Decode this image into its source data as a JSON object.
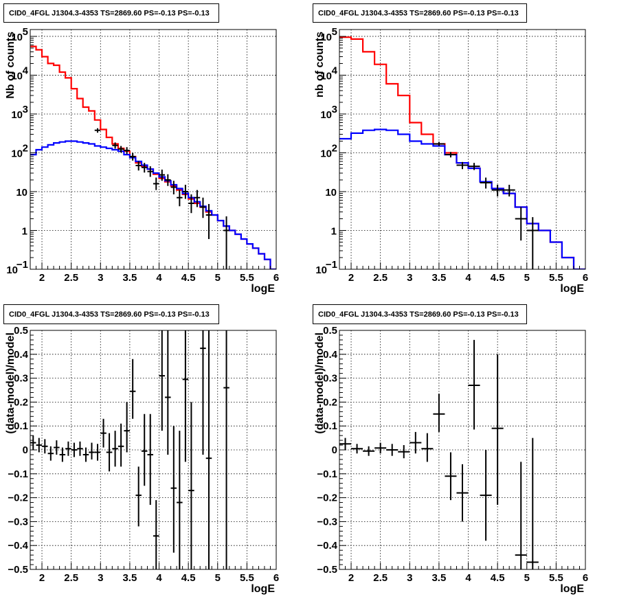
{
  "colors": {
    "data": "#000000",
    "total_model": "#ff0000",
    "source_model": "#0000ff",
    "grid": "#000000"
  },
  "chart_data": [
    {
      "type": "line",
      "title": "CID0_4FGL J1304.3-4353 TS=2869.60 PS=-0.13 PS=-0.13",
      "xlabel": "logE",
      "ylabel": "Nb of counts",
      "log_y": true,
      "xlim": [
        1.8,
        6.0
      ],
      "ylim": [
        0.1,
        150000
      ],
      "grid": true,
      "x_ticks": [
        "2",
        "2.5",
        "3",
        "3.5",
        "4",
        "4.5",
        "5",
        "5.5",
        "6"
      ],
      "y_ticks": [
        {
          "value": 0.1,
          "base": "10",
          "exp": "−1"
        },
        {
          "value": 1,
          "base": "1",
          "exp": ""
        },
        {
          "value": 10,
          "base": "10",
          "exp": ""
        },
        {
          "value": 100,
          "base": "10",
          "exp": "2"
        },
        {
          "value": 1000,
          "base": "10",
          "exp": "3"
        },
        {
          "value": 10000,
          "base": "10",
          "exp": "4"
        },
        {
          "value": 100000,
          "base": "10",
          "exp": "5"
        }
      ],
      "bin_edges": [
        1.8,
        1.9,
        2.0,
        2.1,
        2.2,
        2.3,
        2.4,
        2.5,
        2.6,
        2.7,
        2.8,
        2.9,
        3.0,
        3.1,
        3.2,
        3.3,
        3.4,
        3.5,
        3.6,
        3.7,
        3.8,
        3.9,
        4.0,
        4.1,
        4.2,
        4.3,
        4.4,
        4.5,
        4.6,
        4.7,
        4.8,
        4.9,
        5.0,
        5.1,
        5.2,
        5.3,
        5.4,
        5.5,
        5.6,
        5.7,
        5.8,
        5.9,
        6.0
      ],
      "series": [
        {
          "role": "total_model",
          "values": [
            55000,
            45000,
            30000,
            20000,
            18000,
            12000,
            8500,
            4500,
            2500,
            1500,
            1200,
            700,
            400,
            250,
            170,
            130,
            110,
            80,
            55,
            45,
            38,
            28,
            22,
            18,
            14,
            11,
            8.5,
            6.5,
            5,
            4,
            3,
            2.5,
            1.8,
            1.3,
            1,
            0.8,
            0.6,
            0.45,
            0.35,
            0.25,
            0.18,
            0.1
          ]
        },
        {
          "role": "source_model",
          "values": [
            90,
            120,
            140,
            160,
            180,
            190,
            200,
            200,
            190,
            180,
            170,
            150,
            140,
            130,
            120,
            110,
            90,
            75,
            60,
            48,
            38,
            30,
            24,
            19,
            15,
            12,
            9,
            7,
            5.5,
            4.2,
            3.2,
            2.5,
            1.8,
            1.3,
            1,
            0.8,
            0.6,
            0.45,
            0.35,
            0.25,
            0.18,
            0.1
          ]
        }
      ],
      "points": [
        {
          "x": 2.95,
          "y": 380,
          "dx": 0.05,
          "ylo": 330,
          "yhi": 430
        },
        {
          "x": 3.25,
          "y": 155,
          "dx": 0.05,
          "ylo": 128,
          "yhi": 185
        },
        {
          "x": 3.35,
          "y": 125,
          "dx": 0.05,
          "ylo": 102,
          "yhi": 150
        },
        {
          "x": 3.45,
          "y": 115,
          "dx": 0.05,
          "ylo": 93,
          "yhi": 140
        },
        {
          "x": 3.55,
          "y": 80,
          "dx": 0.05,
          "ylo": 63,
          "yhi": 100
        },
        {
          "x": 3.65,
          "y": 47,
          "dx": 0.05,
          "ylo": 35,
          "yhi": 61
        },
        {
          "x": 3.75,
          "y": 42,
          "dx": 0.05,
          "ylo": 31,
          "yhi": 55
        },
        {
          "x": 3.85,
          "y": 33,
          "dx": 0.05,
          "ylo": 24,
          "yhi": 45
        },
        {
          "x": 3.95,
          "y": 16,
          "dx": 0.05,
          "ylo": 11,
          "yhi": 23
        },
        {
          "x": 4.05,
          "y": 27,
          "dx": 0.05,
          "ylo": 19,
          "yhi": 37
        },
        {
          "x": 4.15,
          "y": 20,
          "dx": 0.05,
          "ylo": 14,
          "yhi": 28
        },
        {
          "x": 4.25,
          "y": 13,
          "dx": 0.05,
          "ylo": 8.5,
          "yhi": 19
        },
        {
          "x": 4.35,
          "y": 7,
          "dx": 0.05,
          "ylo": 4.2,
          "yhi": 11
        },
        {
          "x": 4.45,
          "y": 10,
          "dx": 0.05,
          "ylo": 6.5,
          "yhi": 15
        },
        {
          "x": 4.55,
          "y": 5,
          "dx": 0.05,
          "ylo": 2.8,
          "yhi": 8.5
        },
        {
          "x": 4.65,
          "y": 7,
          "dx": 0.05,
          "ylo": 4,
          "yhi": 11
        },
        {
          "x": 4.75,
          "y": 4,
          "dx": 0.05,
          "ylo": 2.1,
          "yhi": 7
        },
        {
          "x": 4.85,
          "y": 2.5,
          "dx": 0.05,
          "ylo": 0.6,
          "yhi": 4.8
        },
        {
          "x": 5.15,
          "y": 1,
          "dx": 0.05,
          "ylo": 0.1,
          "yhi": 2.3
        }
      ]
    },
    {
      "type": "line",
      "title": "CID0_4FGL J1304.3-4353 TS=2869.60 PS=-0.13 PS=-0.13",
      "xlabel": "logE",
      "ylabel": "nb of counts",
      "log_y": true,
      "xlim": [
        1.8,
        6.0
      ],
      "ylim": [
        0.1,
        150000
      ],
      "grid": true,
      "x_ticks": [
        "2",
        "2.5",
        "3",
        "3.5",
        "4",
        "4.5",
        "5",
        "5.5",
        "6"
      ],
      "y_ticks": [
        {
          "value": 0.1,
          "base": "10",
          "exp": "−1"
        },
        {
          "value": 1,
          "base": "1",
          "exp": ""
        },
        {
          "value": 10,
          "base": "10",
          "exp": ""
        },
        {
          "value": 100,
          "base": "10",
          "exp": "2"
        },
        {
          "value": 1000,
          "base": "10",
          "exp": "3"
        },
        {
          "value": 10000,
          "base": "10",
          "exp": "4"
        },
        {
          "value": 100000,
          "base": "10",
          "exp": "5"
        }
      ],
      "bin_edges": [
        1.8,
        2.0,
        2.2,
        2.4,
        2.6,
        2.8,
        3.0,
        3.2,
        3.4,
        3.6,
        3.8,
        4.0,
        4.2,
        4.4,
        4.6,
        4.8,
        5.0,
        5.2,
        5.4,
        5.6,
        5.8,
        6.0
      ],
      "series": [
        {
          "role": "total_model",
          "values": [
            95000,
            85000,
            40000,
            19000,
            6000,
            3000,
            600,
            300,
            170,
            100,
            55,
            40,
            18,
            12,
            9,
            4,
            1.5,
            1,
            0.5,
            0.2,
            0.1
          ]
        },
        {
          "role": "source_model",
          "values": [
            230,
            320,
            380,
            400,
            380,
            300,
            200,
            170,
            150,
            90,
            55,
            40,
            18,
            12,
            9,
            4,
            1.5,
            1,
            0.5,
            0.2,
            0.1
          ]
        }
      ],
      "points": [
        {
          "x": 3.5,
          "y": 170,
          "dx": 0.1,
          "ylo": 150,
          "yhi": 192
        },
        {
          "x": 3.7,
          "y": 90,
          "dx": 0.1,
          "ylo": 76,
          "yhi": 105
        },
        {
          "x": 3.9,
          "y": 48,
          "dx": 0.1,
          "ylo": 38,
          "yhi": 58
        },
        {
          "x": 4.1,
          "y": 45,
          "dx": 0.1,
          "ylo": 36,
          "yhi": 55
        },
        {
          "x": 4.3,
          "y": 17,
          "dx": 0.1,
          "ylo": 12,
          "yhi": 23
        },
        {
          "x": 4.5,
          "y": 11,
          "dx": 0.1,
          "ylo": 7.5,
          "yhi": 15
        },
        {
          "x": 4.7,
          "y": 11,
          "dx": 0.1,
          "ylo": 7.5,
          "yhi": 15
        },
        {
          "x": 4.9,
          "y": 2,
          "dx": 0.1,
          "ylo": 0.55,
          "yhi": 4
        },
        {
          "x": 5.1,
          "y": 1,
          "dx": 0.1,
          "ylo": 0.1,
          "yhi": 2.2
        }
      ]
    },
    {
      "type": "scatter",
      "title": "CID0_4FGL J1304.3-4353 TS=2869.60 PS=-0.13 PS=-0.13",
      "xlabel": "logE",
      "ylabel": "(data-model)/model",
      "log_y": false,
      "xlim": [
        1.8,
        6.0
      ],
      "ylim": [
        -0.5,
        0.5
      ],
      "grid": true,
      "x_ticks": [
        "2",
        "2.5",
        "3",
        "3.5",
        "4",
        "4.5",
        "5",
        "5.5",
        "6"
      ],
      "y_ticks": [
        "−0.5",
        "−0.4",
        "−0.3",
        "−0.2",
        "−0.1",
        "0",
        "0.1",
        "0.2",
        "0.3",
        "0.4",
        "0.5"
      ],
      "points": [
        {
          "x": 1.85,
          "y": 0.03,
          "dx": 0.05,
          "ylo": 0.0,
          "yhi": 0.06
        },
        {
          "x": 1.95,
          "y": 0.02,
          "dx": 0.05,
          "ylo": -0.01,
          "yhi": 0.05
        },
        {
          "x": 2.05,
          "y": 0.015,
          "dx": 0.05,
          "ylo": -0.015,
          "yhi": 0.045
        },
        {
          "x": 2.15,
          "y": -0.015,
          "dx": 0.05,
          "ylo": -0.045,
          "yhi": 0.015
        },
        {
          "x": 2.25,
          "y": 0.01,
          "dx": 0.05,
          "ylo": -0.02,
          "yhi": 0.04
        },
        {
          "x": 2.35,
          "y": -0.02,
          "dx": 0.05,
          "ylo": -0.05,
          "yhi": 0.01
        },
        {
          "x": 2.45,
          "y": 0.005,
          "dx": 0.05,
          "ylo": -0.025,
          "yhi": 0.035
        },
        {
          "x": 2.55,
          "y": 0.0,
          "dx": 0.05,
          "ylo": -0.03,
          "yhi": 0.03
        },
        {
          "x": 2.65,
          "y": 0.005,
          "dx": 0.05,
          "ylo": -0.025,
          "yhi": 0.035
        },
        {
          "x": 2.75,
          "y": -0.02,
          "dx": 0.05,
          "ylo": -0.05,
          "yhi": 0.01
        },
        {
          "x": 2.85,
          "y": -0.01,
          "dx": 0.05,
          "ylo": -0.04,
          "yhi": 0.03
        },
        {
          "x": 2.95,
          "y": -0.01,
          "dx": 0.05,
          "ylo": -0.045,
          "yhi": 0.025
        },
        {
          "x": 3.05,
          "y": 0.07,
          "dx": 0.05,
          "ylo": 0.01,
          "yhi": 0.13
        },
        {
          "x": 3.15,
          "y": -0.01,
          "dx": 0.05,
          "ylo": -0.09,
          "yhi": 0.07
        },
        {
          "x": 3.25,
          "y": 0.005,
          "dx": 0.05,
          "ylo": -0.07,
          "yhi": 0.08
        },
        {
          "x": 3.35,
          "y": 0.015,
          "dx": 0.05,
          "ylo": -0.07,
          "yhi": 0.11
        },
        {
          "x": 3.45,
          "y": 0.08,
          "dx": 0.05,
          "ylo": -0.01,
          "yhi": 0.2
        },
        {
          "x": 3.55,
          "y": 0.245,
          "dx": 0.05,
          "ylo": 0.13,
          "yhi": 0.38
        },
        {
          "x": 3.65,
          "y": -0.19,
          "dx": 0.05,
          "ylo": -0.32,
          "yhi": -0.07
        },
        {
          "x": 3.75,
          "y": -0.005,
          "dx": 0.05,
          "ylo": -0.15,
          "yhi": 0.15
        },
        {
          "x": 3.85,
          "y": -0.02,
          "dx": 0.05,
          "ylo": -0.23,
          "yhi": 0.15
        },
        {
          "x": 3.95,
          "y": -0.36,
          "dx": 0.05,
          "ylo": -0.5,
          "yhi": -0.21
        },
        {
          "x": 4.05,
          "y": 0.31,
          "dx": 0.05,
          "ylo": 0.08,
          "yhi": 0.5
        },
        {
          "x": 4.15,
          "y": 0.22,
          "dx": 0.05,
          "ylo": -0.02,
          "yhi": 0.5
        },
        {
          "x": 4.25,
          "y": -0.16,
          "dx": 0.05,
          "ylo": -0.43,
          "yhi": 0.1
        },
        {
          "x": 4.35,
          "y": -0.22,
          "dx": 0.05,
          "ylo": -0.5,
          "yhi": 0.08
        },
        {
          "x": 4.45,
          "y": 0.295,
          "dx": 0.05,
          "ylo": -0.05,
          "yhi": 0.5
        },
        {
          "x": 4.55,
          "y": -0.17,
          "dx": 0.05,
          "ylo": -0.5,
          "yhi": 0.2
        },
        {
          "x": 4.75,
          "y": 0.425,
          "dx": 0.05,
          "ylo": -0.02,
          "yhi": 0.5
        },
        {
          "x": 4.85,
          "y": -0.035,
          "dx": 0.05,
          "ylo": -0.5,
          "yhi": 0.5
        },
        {
          "x": 5.15,
          "y": 0.26,
          "dx": 0.05,
          "ylo": -0.5,
          "yhi": 0.5
        }
      ]
    },
    {
      "type": "scatter",
      "title": "CID0_4FGL J1304.3-4353 TS=2869.60 PS=-0.13 PS=-0.13",
      "xlabel": "logE",
      "ylabel": "(data-model)/model",
      "log_y": false,
      "xlim": [
        1.8,
        6.0
      ],
      "ylim": [
        -0.5,
        0.5
      ],
      "grid": true,
      "x_ticks": [
        "2",
        "2.5",
        "3",
        "3.5",
        "4",
        "4.5",
        "5",
        "5.5",
        "6"
      ],
      "y_ticks": [
        "−0.5",
        "−0.4",
        "−0.3",
        "−0.2",
        "−0.1",
        "0",
        "0.1",
        "0.2",
        "0.3",
        "0.4",
        "0.5"
      ],
      "points": [
        {
          "x": 1.9,
          "y": 0.025,
          "dx": 0.1,
          "ylo": 0.0,
          "yhi": 0.05
        },
        {
          "x": 2.1,
          "y": 0.005,
          "dx": 0.1,
          "ylo": -0.015,
          "yhi": 0.025
        },
        {
          "x": 2.3,
          "y": -0.005,
          "dx": 0.1,
          "ylo": -0.025,
          "yhi": 0.015
        },
        {
          "x": 2.5,
          "y": 0.008,
          "dx": 0.1,
          "ylo": -0.015,
          "yhi": 0.03
        },
        {
          "x": 2.7,
          "y": 0.0,
          "dx": 0.1,
          "ylo": -0.025,
          "yhi": 0.025
        },
        {
          "x": 2.9,
          "y": -0.008,
          "dx": 0.1,
          "ylo": -0.035,
          "yhi": 0.02
        },
        {
          "x": 3.1,
          "y": 0.03,
          "dx": 0.1,
          "ylo": -0.015,
          "yhi": 0.075
        },
        {
          "x": 3.3,
          "y": 0.005,
          "dx": 0.1,
          "ylo": -0.05,
          "yhi": 0.07
        },
        {
          "x": 3.5,
          "y": 0.15,
          "dx": 0.1,
          "ylo": 0.075,
          "yhi": 0.235
        },
        {
          "x": 3.7,
          "y": -0.11,
          "dx": 0.1,
          "ylo": -0.21,
          "yhi": -0.01
        },
        {
          "x": 3.9,
          "y": -0.18,
          "dx": 0.1,
          "ylo": -0.3,
          "yhi": -0.06
        },
        {
          "x": 4.1,
          "y": 0.27,
          "dx": 0.1,
          "ylo": 0.085,
          "yhi": 0.46
        },
        {
          "x": 4.3,
          "y": -0.19,
          "dx": 0.1,
          "ylo": -0.38,
          "yhi": 0.0
        },
        {
          "x": 4.5,
          "y": 0.09,
          "dx": 0.1,
          "ylo": -0.23,
          "yhi": 0.4
        },
        {
          "x": 4.9,
          "y": -0.44,
          "dx": 0.1,
          "ylo": -0.5,
          "yhi": -0.05
        },
        {
          "x": 5.1,
          "y": -0.47,
          "dx": 0.1,
          "ylo": -0.5,
          "yhi": 0.05
        }
      ]
    }
  ]
}
